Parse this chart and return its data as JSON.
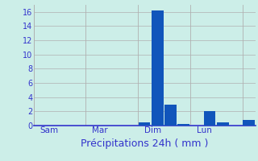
{
  "bar_values": [
    0,
    0,
    0,
    0,
    0,
    0,
    0,
    0,
    0.4,
    16.2,
    3.0,
    0.2,
    0,
    2.0,
    0.5,
    0,
    0.8
  ],
  "num_bars": 17,
  "xlabel": "Précipitations 24h ( mm )",
  "ylim": [
    0,
    17
  ],
  "yticks": [
    0,
    2,
    4,
    6,
    8,
    10,
    12,
    14,
    16
  ],
  "day_labels": [
    "Sam",
    "Mar",
    "Dim",
    "Lun"
  ],
  "day_positions": [
    0.5,
    4.5,
    8.5,
    12.5
  ],
  "vline_positions": [
    0,
    4,
    8,
    12,
    16
  ],
  "background_color": "#cceee8",
  "grid_color": "#b0b0b0",
  "bar_color": "#1155bb",
  "tick_color": "#3333cc",
  "xlabel_color": "#3333cc",
  "xlabel_fontsize": 9,
  "tick_fontsize": 7,
  "day_label_fontsize": 7.5
}
